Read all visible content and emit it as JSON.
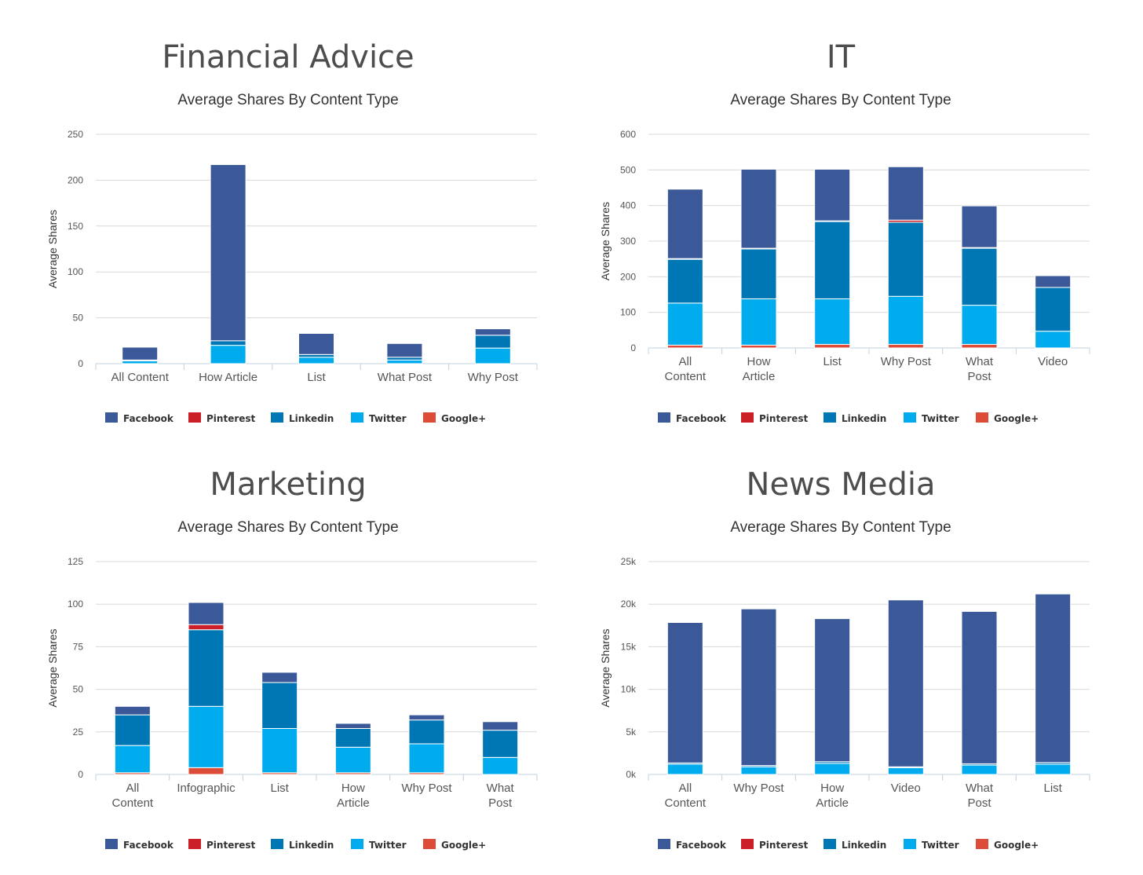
{
  "legend_colors": {
    "Facebook": "#3b5998",
    "Pinterest": "#cb2027",
    "Linkedin": "#0077b5",
    "Twitter": "#00aced",
    "Google+": "#dd4b39"
  },
  "chart_data": [
    {
      "type": "bar",
      "stacked": true,
      "panel_title": "Financial Advice",
      "title": "Average Shares By Content Type",
      "xlabel": "",
      "ylabel": "Average Shares",
      "ylim": [
        0,
        250
      ],
      "yticks": [
        0,
        50,
        100,
        150,
        200,
        250
      ],
      "ytick_labels": [
        "0",
        "50",
        "100",
        "150",
        "200",
        "250"
      ],
      "grid": true,
      "legend_position": "bottom",
      "categories": [
        "All Content",
        "How Article",
        "List",
        "What Post",
        "Why Post"
      ],
      "series": [
        {
          "name": "Google+",
          "values": [
            0,
            0,
            0,
            0,
            0
          ]
        },
        {
          "name": "Twitter",
          "values": [
            3,
            20,
            7,
            4,
            17
          ]
        },
        {
          "name": "Linkedin",
          "values": [
            1,
            5,
            3,
            3,
            14
          ]
        },
        {
          "name": "Pinterest",
          "values": [
            0,
            0,
            0,
            0,
            0
          ]
        },
        {
          "name": "Facebook",
          "values": [
            14,
            192,
            23,
            15,
            7
          ]
        }
      ]
    },
    {
      "type": "bar",
      "stacked": true,
      "panel_title": "IT",
      "title": "Average Shares By Content Type",
      "xlabel": "",
      "ylabel": "Average Shares",
      "ylim": [
        0,
        600
      ],
      "yticks": [
        0,
        100,
        200,
        300,
        400,
        500,
        600
      ],
      "ytick_labels": [
        "0",
        "100",
        "200",
        "300",
        "400",
        "500",
        "600"
      ],
      "grid": true,
      "legend_position": "bottom",
      "categories": [
        "All Content",
        "How Article",
        "List",
        "Why Post",
        "What Post",
        "Video"
      ],
      "series": [
        {
          "name": "Google+",
          "values": [
            8,
            8,
            10,
            10,
            10,
            0
          ]
        },
        {
          "name": "Twitter",
          "values": [
            118,
            130,
            128,
            135,
            110,
            47
          ]
        },
        {
          "name": "Linkedin",
          "values": [
            123,
            140,
            217,
            208,
            160,
            123
          ]
        },
        {
          "name": "Pinterest",
          "values": [
            2,
            2,
            2,
            6,
            2,
            0
          ]
        },
        {
          "name": "Facebook",
          "values": [
            195,
            222,
            145,
            150,
            117,
            33
          ]
        }
      ]
    },
    {
      "type": "bar",
      "stacked": true,
      "panel_title": "Marketing",
      "title": "Average Shares By Content Type",
      "xlabel": "",
      "ylabel": "Average Shares",
      "ylim": [
        0,
        125
      ],
      "yticks": [
        0,
        25,
        50,
        75,
        100,
        125
      ],
      "ytick_labels": [
        "0",
        "25",
        "50",
        "75",
        "100",
        "125"
      ],
      "grid": true,
      "legend_position": "bottom",
      "categories": [
        "All Content",
        "Infographic",
        "List",
        "How Article",
        "Why Post",
        "What Post"
      ],
      "series": [
        {
          "name": "Google+",
          "values": [
            1,
            4,
            1,
            1,
            1,
            0
          ]
        },
        {
          "name": "Twitter",
          "values": [
            16,
            36,
            26,
            15,
            17,
            10
          ]
        },
        {
          "name": "Linkedin",
          "values": [
            18,
            45,
            27,
            11,
            14,
            16
          ]
        },
        {
          "name": "Pinterest",
          "values": [
            0,
            3,
            0,
            0,
            0,
            0
          ]
        },
        {
          "name": "Facebook",
          "values": [
            5,
            13,
            6,
            3,
            3,
            5
          ]
        }
      ]
    },
    {
      "type": "bar",
      "stacked": true,
      "panel_title": "News Media",
      "title": "Average Shares By Content Type",
      "xlabel": "",
      "ylabel": "Average Shares",
      "ylim": [
        0,
        25000
      ],
      "yticks": [
        0,
        5000,
        10000,
        15000,
        20000,
        25000
      ],
      "ytick_labels": [
        "0k",
        "5k",
        "10k",
        "15k",
        "20k",
        "25k"
      ],
      "grid": true,
      "legend_position": "bottom",
      "categories": [
        "All Content",
        "Why Post",
        "How Article",
        "Video",
        "What Post",
        "List"
      ],
      "series": [
        {
          "name": "Google+",
          "values": [
            0,
            0,
            0,
            0,
            0,
            0
          ]
        },
        {
          "name": "Twitter",
          "values": [
            1200,
            900,
            1300,
            800,
            1100,
            1200
          ]
        },
        {
          "name": "Linkedin",
          "values": [
            150,
            150,
            200,
            100,
            150,
            200
          ]
        },
        {
          "name": "Pinterest",
          "values": [
            0,
            0,
            0,
            0,
            0,
            0
          ]
        },
        {
          "name": "Facebook",
          "values": [
            16500,
            18400,
            16800,
            19600,
            17900,
            19800
          ]
        }
      ]
    }
  ],
  "legend_order": [
    "Facebook",
    "Pinterest",
    "Linkedin",
    "Twitter",
    "Google+"
  ]
}
